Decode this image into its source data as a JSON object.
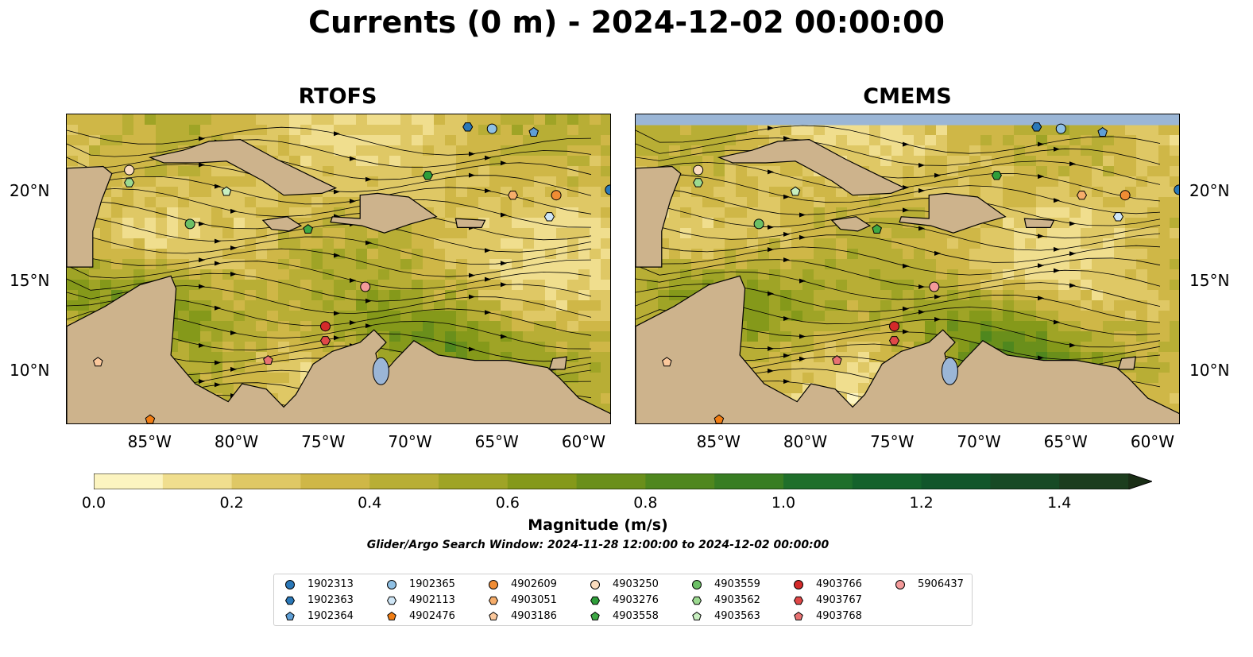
{
  "title": "Currents (0 m) - 2024-12-02 00:00:00",
  "panels": [
    {
      "name": "RTOFS"
    },
    {
      "name": "CMEMS"
    }
  ],
  "axes": {
    "lon_ticks": [
      "85°W",
      "80°W",
      "75°W",
      "70°W",
      "65°W",
      "60°W"
    ],
    "lon_values": [
      -85,
      -80,
      -75,
      -70,
      -65,
      -60
    ],
    "lat_ticks": [
      "20°N",
      "15°N",
      "10°N"
    ],
    "lat_values": [
      20,
      15,
      10
    ],
    "lon_range": [
      -89.7,
      -58.3
    ],
    "lat_range": [
      7.0,
      24.3
    ]
  },
  "colorbar": {
    "label": "Magnitude (m/s)",
    "range": [
      0.0,
      1.5
    ],
    "tick_labels": [
      "0.0",
      "0.2",
      "0.4",
      "0.6",
      "0.8",
      "1.0",
      "1.2",
      "1.4"
    ],
    "tick_values": [
      0.0,
      0.2,
      0.4,
      0.6,
      0.8,
      1.0,
      1.2,
      1.4
    ],
    "colors": [
      "#fcf4c0",
      "#f0de8e",
      "#dfc865",
      "#cfb747",
      "#b8ae35",
      "#9fa426",
      "#85991a",
      "#6a8f1b",
      "#4f871e",
      "#387d23",
      "#1f6f2b",
      "#14622c",
      "#11562b",
      "#174a25",
      "#1c3d1e",
      "#1a2e16"
    ],
    "extend": "max"
  },
  "search_window": "Glider/Argo Search Window: 2024-11-28 12:00:00 to 2024-12-02 00:00:00",
  "colors": {
    "land": "#cdb38c",
    "water": "#9bb6d6",
    "ocean_base": "#f5e8a8"
  },
  "legend": [
    {
      "id": "1902313",
      "marker": "circle",
      "color": "#2a78b8"
    },
    {
      "id": "1902363",
      "marker": "hexagon",
      "color": "#2a78b8"
    },
    {
      "id": "1902364",
      "marker": "pentagon",
      "color": "#5f9fd6"
    },
    {
      "id": "1902365",
      "marker": "circle",
      "color": "#8fc0e4"
    },
    {
      "id": "4902113",
      "marker": "hexagon",
      "color": "#cfe6f6"
    },
    {
      "id": "4902476",
      "marker": "pentagon",
      "color": "#f07d14"
    },
    {
      "id": "4902609",
      "marker": "circle",
      "color": "#f08c34"
    },
    {
      "id": "4903051",
      "marker": "hexagon",
      "color": "#f6ad6a"
    },
    {
      "id": "4903186",
      "marker": "pentagon",
      "color": "#fbc89c"
    },
    {
      "id": "4903250",
      "marker": "circle",
      "color": "#fadcbe"
    },
    {
      "id": "4903276",
      "marker": "hexagon",
      "color": "#2e9e3a"
    },
    {
      "id": "4903558",
      "marker": "pentagon",
      "color": "#3ea845"
    },
    {
      "id": "4903559",
      "marker": "circle",
      "color": "#6cc066"
    },
    {
      "id": "4903562",
      "marker": "hexagon",
      "color": "#9cda90"
    },
    {
      "id": "4903563",
      "marker": "pentagon",
      "color": "#c8efc0"
    },
    {
      "id": "4903766",
      "marker": "circle",
      "color": "#d42a2a"
    },
    {
      "id": "4903767",
      "marker": "hexagon",
      "color": "#e04848"
    },
    {
      "id": "4903768",
      "marker": "pentagon",
      "color": "#e87272"
    },
    {
      "id": "5906437",
      "marker": "circle",
      "color": "#f49a9a"
    }
  ],
  "floats": [
    {
      "id": "1902313",
      "lon": -58.4,
      "lat": 20.1
    },
    {
      "id": "1902363",
      "lon": -66.6,
      "lat": 23.6
    },
    {
      "id": "1902364",
      "lon": -62.8,
      "lat": 23.3
    },
    {
      "id": "1902365",
      "lon": -65.2,
      "lat": 23.5
    },
    {
      "id": "4902113",
      "lon": -61.9,
      "lat": 18.6
    },
    {
      "id": "4902476",
      "lon": -84.9,
      "lat": 7.3
    },
    {
      "id": "4902609",
      "lon": -61.5,
      "lat": 19.8
    },
    {
      "id": "4903051",
      "lon": -64.0,
      "lat": 19.8
    },
    {
      "id": "4903186",
      "lon": -87.9,
      "lat": 10.5
    },
    {
      "id": "4903250",
      "lon": -86.1,
      "lat": 21.2
    },
    {
      "id": "4903276",
      "lon": -68.9,
      "lat": 20.9
    },
    {
      "id": "4903558",
      "lon": -75.8,
      "lat": 17.9
    },
    {
      "id": "4903559",
      "lon": -82.6,
      "lat": 18.2
    },
    {
      "id": "4903562",
      "lon": -86.1,
      "lat": 20.5
    },
    {
      "id": "4903563",
      "lon": -80.5,
      "lat": 20.0
    },
    {
      "id": "4903766",
      "lon": -74.8,
      "lat": 12.5
    },
    {
      "id": "4903767",
      "lon": -74.8,
      "lat": 11.7
    },
    {
      "id": "4903768",
      "lon": -78.1,
      "lat": 10.6
    },
    {
      "id": "5906437",
      "lon": -72.5,
      "lat": 14.7
    }
  ]
}
